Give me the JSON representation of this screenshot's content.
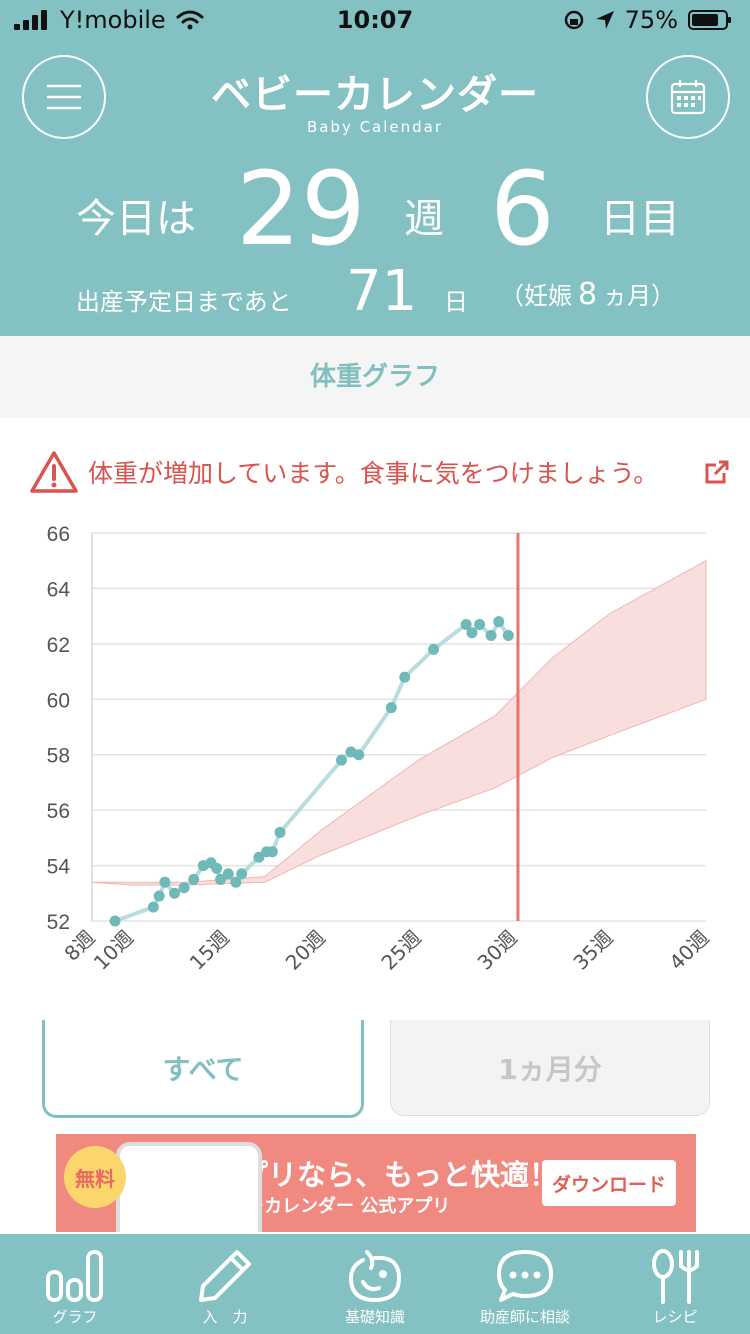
{
  "status": {
    "carrier": "Y!mobile",
    "time": "10:07",
    "battery": "75%"
  },
  "header": {
    "logo_jp": "ベビーカレンダー",
    "logo_en": "Baby Calendar",
    "today_prefix": "今日は",
    "week_num": "29",
    "week_label": "週",
    "day_num": "6",
    "day_label": "日目",
    "due_prefix": "出産予定日まであと",
    "days_left": "71",
    "days_unit": "日",
    "month_open": "（妊娠",
    "month_num": "8",
    "month_close": "ヵ月）"
  },
  "section_title": "体重グラフ",
  "warning": {
    "text": "体重が増加しています。食事に気をつけましょう。",
    "color": "#d9534f"
  },
  "chart_data": {
    "type": "line",
    "ylim": [
      52,
      66
    ],
    "yticks": [
      "52",
      "54",
      "56",
      "58",
      "60",
      "62",
      "64",
      "66"
    ],
    "xlim": [
      8,
      40
    ],
    "xticks": [
      {
        "v": 8,
        "label": "8週"
      },
      {
        "v": 10,
        "label": "10週"
      },
      {
        "v": 15,
        "label": "15週"
      },
      {
        "v": 20,
        "label": "20週"
      },
      {
        "v": 25,
        "label": "25週"
      },
      {
        "v": 30,
        "label": "30週"
      },
      {
        "v": 35,
        "label": "35週"
      },
      {
        "v": 40,
        "label": "40週"
      }
    ],
    "current_week": 30.2,
    "range_band": {
      "x": [
        8,
        10,
        13,
        17,
        20,
        25,
        29,
        32,
        35,
        40
      ],
      "low": [
        53.4,
        53.3,
        53.3,
        53.4,
        54.4,
        55.8,
        56.8,
        57.9,
        58.7,
        60.0
      ],
      "high": [
        53.4,
        53.4,
        53.4,
        53.6,
        55.3,
        57.8,
        59.4,
        61.5,
        63.1,
        65.0
      ]
    },
    "series": [
      {
        "x": [
          9.2,
          11.2,
          11.5,
          11.8,
          12.3,
          12.8,
          13.3,
          13.8,
          14.2,
          14.5,
          14.7,
          15.1,
          15.5,
          15.8,
          16.7,
          17.1,
          17.4,
          17.8,
          21.0,
          21.5,
          21.9,
          23.6,
          24.3,
          25.8,
          27.5,
          27.8,
          28.2,
          28.8,
          29.2,
          29.7
        ],
        "y": [
          52.0,
          52.5,
          52.9,
          53.4,
          53.0,
          53.2,
          53.5,
          54.0,
          54.1,
          53.9,
          53.5,
          53.7,
          53.4,
          53.7,
          54.3,
          54.5,
          54.5,
          55.2,
          57.8,
          58.1,
          58.0,
          59.7,
          60.8,
          61.8,
          62.7,
          62.4,
          62.7,
          62.3,
          62.8,
          62.3
        ]
      }
    ],
    "colors": {
      "line": "#b9dcdd",
      "point": "#6fb9b8",
      "band": "#f8dedd",
      "band_edge": "#f0b6b4",
      "current": "#e9736f"
    }
  },
  "tabs": {
    "all": "すべて",
    "month": "1ヵ月分"
  },
  "banner": {
    "free": "無料",
    "headline": "アプリなら、もっと快適！",
    "sub": "ベビーカレンダー 公式アプリ",
    "download": "ダウンロード"
  },
  "nav": [
    {
      "label": "グラフ",
      "icon": "bar-chart-icon"
    },
    {
      "label": "入　力",
      "icon": "pencil-icon"
    },
    {
      "label": "基礎知識",
      "icon": "baby-icon"
    },
    {
      "label": "助産師に相談",
      "icon": "chat-icon"
    },
    {
      "label": "レシピ",
      "icon": "utensils-icon"
    }
  ],
  "colors": {
    "teal": "#83c1c2"
  }
}
